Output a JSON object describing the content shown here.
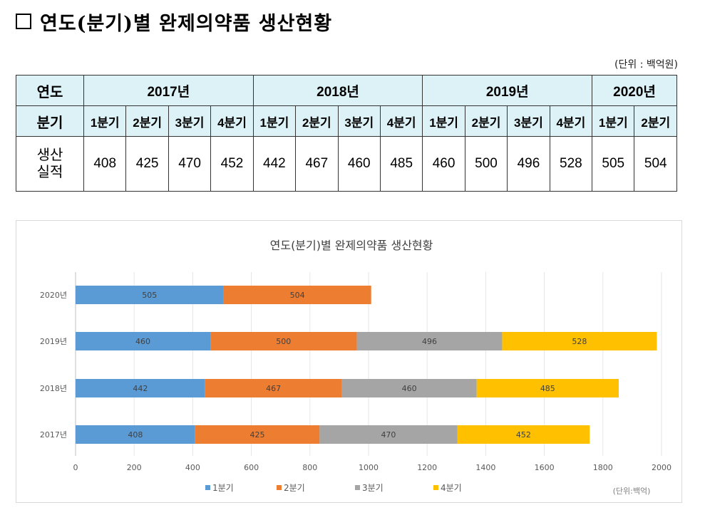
{
  "heading": {
    "title": "연도(분기)별 완제의약품 생산현황"
  },
  "table": {
    "unit": "(단위 : 백억원)",
    "row_label_year": "연도",
    "row_label_quarter": "분기",
    "row_label_value": "생산\n실적",
    "years": [
      "2017년",
      "2018년",
      "2019년",
      "2020년"
    ],
    "quarters": [
      "1분기",
      "2분기",
      "3분기",
      "4분기",
      "1분기",
      "2분기",
      "3분기",
      "4분기",
      "1분기",
      "2분기",
      "3분기",
      "4분기",
      "1분기",
      "2분기"
    ],
    "values": [
      408,
      425,
      470,
      452,
      442,
      467,
      460,
      485,
      460,
      500,
      496,
      528,
      505,
      504
    ]
  },
  "chart_data": {
    "type": "bar",
    "orientation": "horizontal",
    "stacked": true,
    "title": "연도(분기)별 완제의약품 생산현황",
    "unit_note": "(단위:백억)",
    "categories": [
      "2017년",
      "2018년",
      "2019년",
      "2020년"
    ],
    "series": [
      {
        "name": "1분기",
        "color": "#5b9bd5",
        "values": [
          408,
          442,
          460,
          505
        ]
      },
      {
        "name": "2분기",
        "color": "#ed7d31",
        "values": [
          425,
          467,
          500,
          504
        ]
      },
      {
        "name": "3분기",
        "color": "#a5a5a5",
        "values": [
          470,
          460,
          496,
          null
        ]
      },
      {
        "name": "4분기",
        "color": "#ffc000",
        "values": [
          452,
          485,
          528,
          null
        ]
      }
    ],
    "xlim": [
      0,
      2000
    ],
    "xticks": [
      0,
      200,
      400,
      600,
      800,
      1000,
      1200,
      1400,
      1600,
      1800,
      2000
    ],
    "grid": true,
    "legend": "bottom"
  }
}
